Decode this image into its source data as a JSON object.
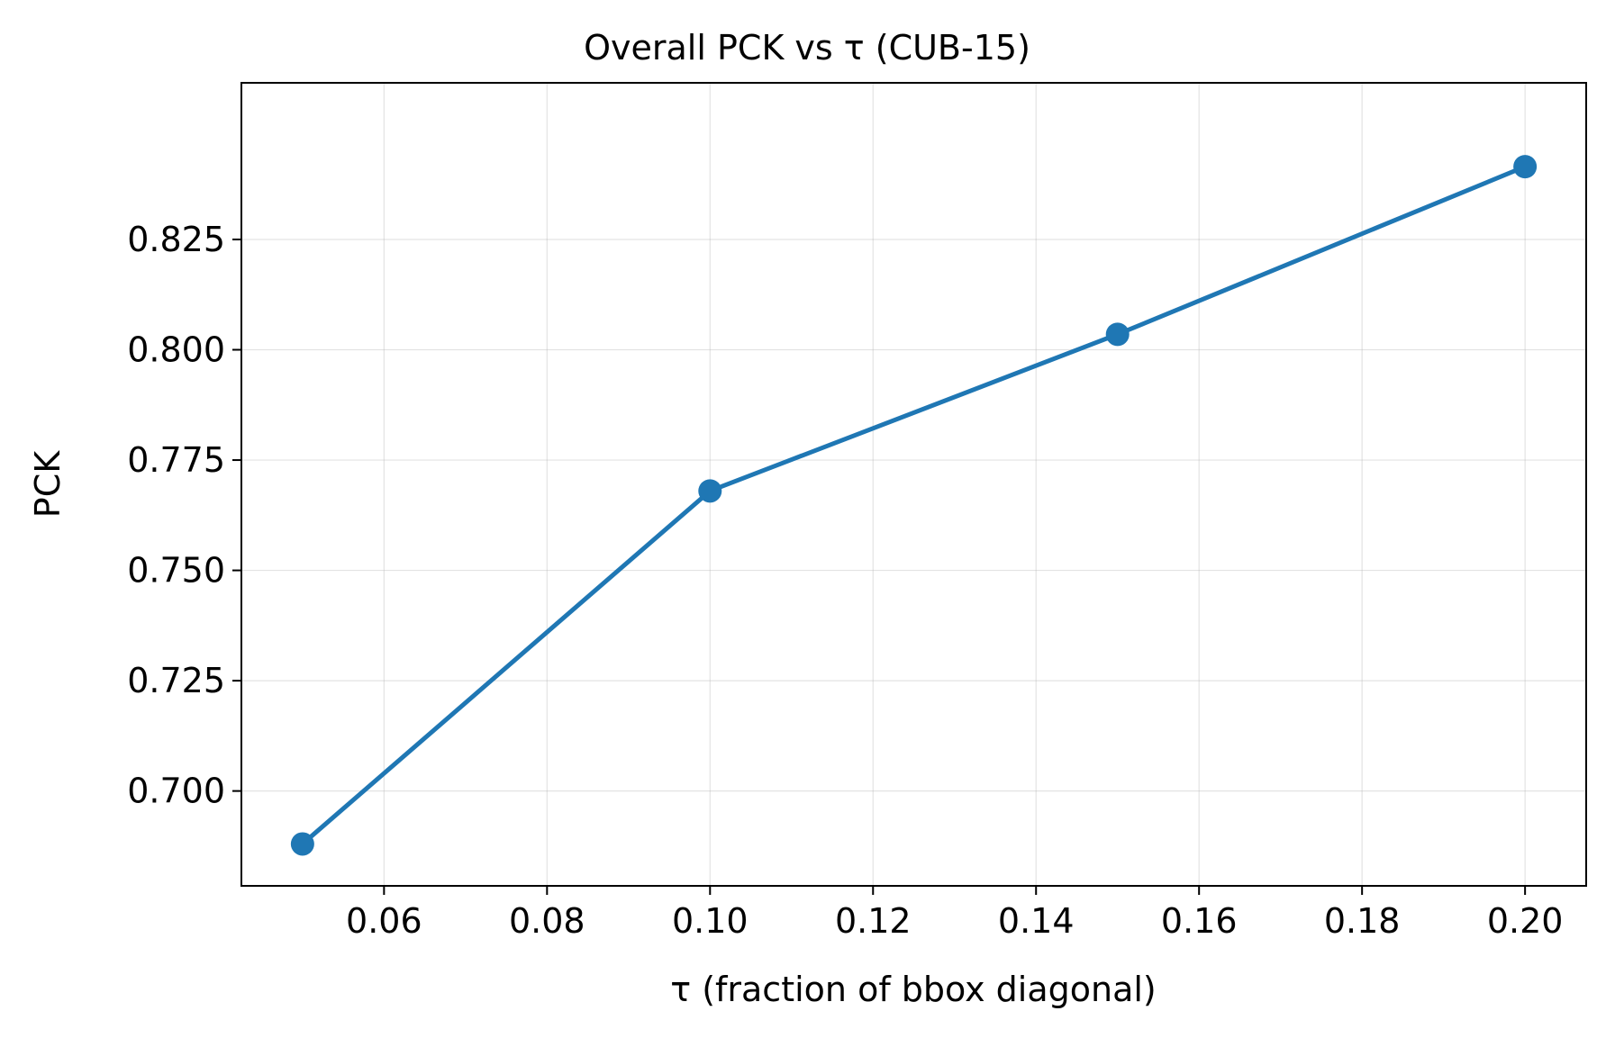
{
  "chart_data": {
    "type": "line",
    "title": "Overall PCK vs τ (CUB-15)",
    "xlabel": "τ (fraction of bbox diagonal)",
    "ylabel": "PCK",
    "x": [
      0.05,
      0.1,
      0.15,
      0.2
    ],
    "series": [
      {
        "values": [
          0.688,
          0.768,
          0.8035,
          0.8415
        ]
      }
    ],
    "xlim": [
      0.0425,
      0.2075
    ],
    "ylim": [
      0.6785,
      0.8605
    ],
    "xticks": [
      0.06,
      0.08,
      0.1,
      0.12,
      0.14,
      0.16,
      0.18,
      0.2
    ],
    "xtick_labels": [
      "0.06",
      "0.08",
      "0.10",
      "0.12",
      "0.14",
      "0.16",
      "0.18",
      "0.20"
    ],
    "yticks": [
      0.7,
      0.725,
      0.75,
      0.775,
      0.8,
      0.825
    ],
    "ytick_labels": [
      "0.700",
      "0.725",
      "0.750",
      "0.775",
      "0.800",
      "0.825"
    ],
    "grid": true,
    "line_color": "#1f77b4"
  }
}
